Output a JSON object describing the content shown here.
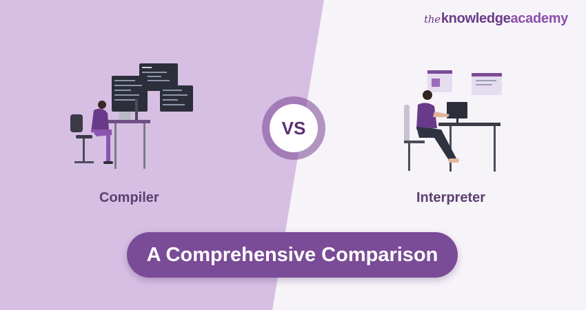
{
  "brand": {
    "prefix": "the",
    "name": "knowledge",
    "accent": "academy"
  },
  "vs": "VS",
  "left_label": "Compiler",
  "right_label": "Interpreter",
  "banner": "A Comprehensive Comparison",
  "colors": {
    "left_background": "#d6bfe3",
    "right_background": "#f6f3f9",
    "brand": "#6b3a86",
    "pill": "#7a4b96",
    "vs_text": "#5a2f72",
    "label": "#5c3f70"
  },
  "icons": [
    "person-at-desk-coding-illustration",
    "woman-at-desk-illustration",
    "code-window-icon"
  ]
}
